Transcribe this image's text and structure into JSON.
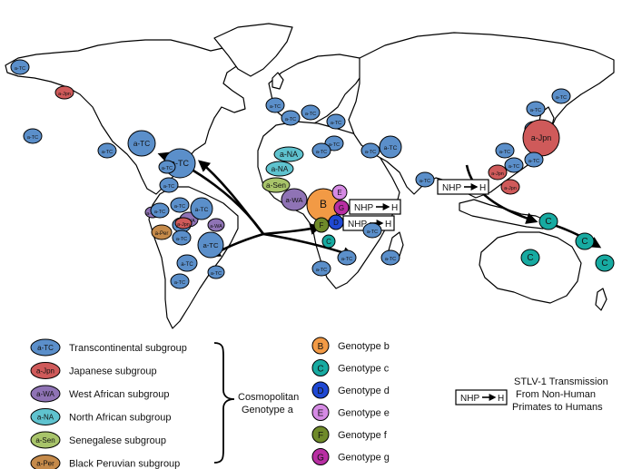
{
  "map": {
    "colors": {
      "TC": "#5b8fca",
      "Jpn": "#cf5a5a",
      "WA": "#8f73b5",
      "NA": "#5fc3cf",
      "Sen": "#a8c46a",
      "Per": "#c58a4a",
      "B": "#f29a45",
      "C": "#17aaa1",
      "D": "#1f48d3",
      "E": "#d58ae4",
      "F": "#6f8a2a",
      "G": "#b82ea3"
    },
    "markers_americas": [
      "a-TC",
      "a-Jpn",
      "a-TC",
      "a-TC",
      "a-TC",
      "a-TC",
      "a-TC",
      "a-TC",
      "a-WA",
      "a-WA",
      "a-TC",
      "a-TC",
      "a-TC",
      "a-TC",
      "a-Jpn",
      "a-WA",
      "a-Per",
      "a-TC",
      "a-TC",
      "a-TC",
      "a-TC",
      "a-TC"
    ],
    "markers_europe_africa": [
      "a-TC",
      "a-TC",
      "a-TC",
      "a-TC",
      "a-TC",
      "a-TC",
      "a-TC",
      "a-TC",
      "a-NA",
      "a-NA",
      "a-Sen",
      "a-WA",
      "B",
      "E",
      "G",
      "D",
      "F",
      "C",
      "a-TC",
      "a-TC",
      "a-TC",
      "a-TC"
    ],
    "markers_asia_oceania": [
      "a-TC",
      "a-TC",
      "a-TC",
      "a-Jpn",
      "a-TC",
      "a-TC",
      "a-TC",
      "a-Jpn",
      "a-Jpn",
      "a-TC",
      "C",
      "C",
      "C",
      "C"
    ],
    "nhp_boxes": [
      "NHP",
      "H",
      "NHP",
      "H",
      "NHP",
      "H"
    ]
  },
  "legend": {
    "subgroups": [
      {
        "code": "a-TC",
        "label": "Transcontinental subgroup",
        "color": "#5b8fca"
      },
      {
        "code": "a-Jpn",
        "label": "Japanese subgroup",
        "color": "#cf5a5a"
      },
      {
        "code": "a-WA",
        "label": "West African subgroup",
        "color": "#8f73b5"
      },
      {
        "code": "a-NA",
        "label": "North African subgroup",
        "color": "#5fc3cf"
      },
      {
        "code": "a-Sen",
        "label": "Senegalese subgroup",
        "color": "#a8c46a"
      },
      {
        "code": "a-Per",
        "label": "Black Peruvian subgroup",
        "color": "#c58a4a"
      }
    ],
    "cosmopolitan": [
      "Cosmopolitan",
      "Genotype a"
    ],
    "genotypes": [
      {
        "code": "B",
        "label": "Genotype b",
        "color": "#f29a45"
      },
      {
        "code": "C",
        "label": "Genotype c",
        "color": "#17aaa1"
      },
      {
        "code": "D",
        "label": "Genotype d",
        "color": "#1f48d3"
      },
      {
        "code": "E",
        "label": "Genotype e",
        "color": "#d58ae4"
      },
      {
        "code": "F",
        "label": "Genotype f",
        "color": "#6f8a2a"
      },
      {
        "code": "G",
        "label": "Genotype g",
        "color": "#b82ea3"
      }
    ],
    "nhp_box": {
      "from": "NHP",
      "to": "H"
    },
    "stlv": [
      "STLV-1 Transmission",
      "From Non-Human",
      "Primates to Humans"
    ]
  }
}
